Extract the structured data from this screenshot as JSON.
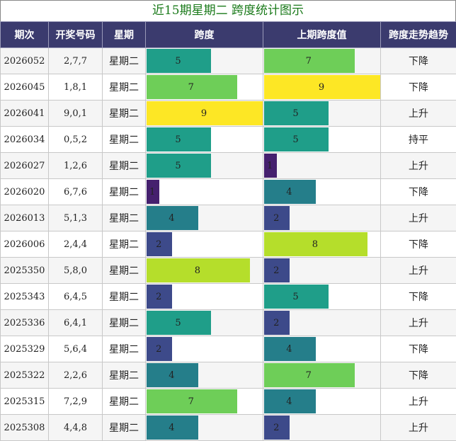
{
  "title": "近15期星期二 跨度统计图示",
  "headers": [
    "期次",
    "开奖号码",
    "星期",
    "跨度",
    "上期跨度值",
    "跨度走势趋势"
  ],
  "colors": {
    "1": "#45206e",
    "2": "#3d4a8a",
    "4": "#257e8a",
    "5": "#1f9e89",
    "7": "#6ece58",
    "8": "#b5de2b",
    "9": "#fde725"
  },
  "chart_data": {
    "type": "table",
    "max_span": 9,
    "rows": [
      {
        "issue": "2026052",
        "numbers": "2,7,7",
        "weekday": "星期二",
        "span": 5,
        "prev_span": 7,
        "trend": "下降"
      },
      {
        "issue": "2026045",
        "numbers": "1,8,1",
        "weekday": "星期二",
        "span": 7,
        "prev_span": 9,
        "trend": "下降"
      },
      {
        "issue": "2026041",
        "numbers": "9,0,1",
        "weekday": "星期二",
        "span": 9,
        "prev_span": 5,
        "trend": "上升"
      },
      {
        "issue": "2026034",
        "numbers": "0,5,2",
        "weekday": "星期二",
        "span": 5,
        "prev_span": 5,
        "trend": "持平"
      },
      {
        "issue": "2026027",
        "numbers": "1,2,6",
        "weekday": "星期二",
        "span": 5,
        "prev_span": 1,
        "trend": "上升"
      },
      {
        "issue": "2026020",
        "numbers": "6,7,6",
        "weekday": "星期二",
        "span": 1,
        "prev_span": 4,
        "trend": "下降"
      },
      {
        "issue": "2026013",
        "numbers": "5,1,3",
        "weekday": "星期二",
        "span": 4,
        "prev_span": 2,
        "trend": "上升"
      },
      {
        "issue": "2026006",
        "numbers": "2,4,4",
        "weekday": "星期二",
        "span": 2,
        "prev_span": 8,
        "trend": "下降"
      },
      {
        "issue": "2025350",
        "numbers": "5,8,0",
        "weekday": "星期二",
        "span": 8,
        "prev_span": 2,
        "trend": "上升"
      },
      {
        "issue": "2025343",
        "numbers": "6,4,5",
        "weekday": "星期二",
        "span": 2,
        "prev_span": 5,
        "trend": "下降"
      },
      {
        "issue": "2025336",
        "numbers": "6,4,1",
        "weekday": "星期二",
        "span": 5,
        "prev_span": 2,
        "trend": "上升"
      },
      {
        "issue": "2025329",
        "numbers": "5,6,4",
        "weekday": "星期二",
        "span": 2,
        "prev_span": 4,
        "trend": "下降"
      },
      {
        "issue": "2025322",
        "numbers": "2,2,6",
        "weekday": "星期二",
        "span": 4,
        "prev_span": 7,
        "trend": "下降"
      },
      {
        "issue": "2025315",
        "numbers": "7,2,9",
        "weekday": "星期二",
        "span": 7,
        "prev_span": 4,
        "trend": "上升"
      },
      {
        "issue": "2025308",
        "numbers": "4,4,8",
        "weekday": "星期二",
        "span": 4,
        "prev_span": 2,
        "trend": "上升"
      }
    ]
  }
}
